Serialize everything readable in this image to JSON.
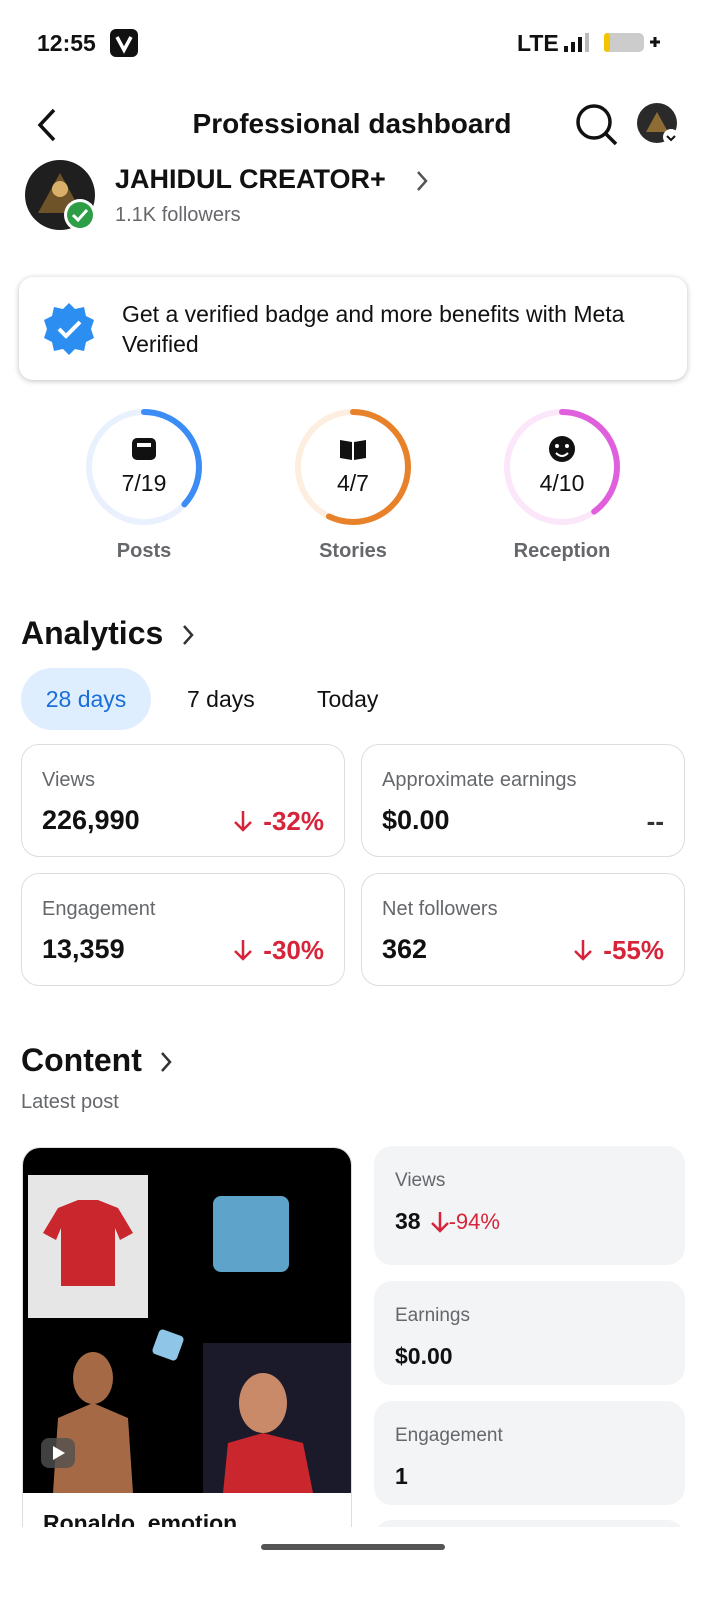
{
  "status_bar": {
    "time": "12:55",
    "network": "LTE"
  },
  "header": {
    "title": "Professional dashboard"
  },
  "profile": {
    "name": "JAHIDUL CREATOR+",
    "followers": "1.1K followers"
  },
  "banner": {
    "text": "Get a verified badge and more benefits with Meta Verified"
  },
  "goals": [
    {
      "value": "7/19",
      "label": "Posts",
      "color": "#3b8cf5",
      "track": "#e8f1fd",
      "icon": "posts"
    },
    {
      "value": "4/7",
      "label": "Stories",
      "color": "#e8822a",
      "track": "#fdeee0",
      "icon": "stories"
    },
    {
      "value": "4/10",
      "label": "Reception",
      "color": "#e05fdc",
      "track": "#fbe6fa",
      "icon": "reception"
    }
  ],
  "analytics": {
    "title": "Analytics",
    "tabs": [
      "28 days",
      "7 days",
      "Today"
    ],
    "active_tab": 0,
    "metrics": [
      {
        "label": "Views",
        "value": "226,990",
        "change": "-32%",
        "trend": "down"
      },
      {
        "label": "Approximate earnings",
        "value": "$0.00",
        "change": "--"
      },
      {
        "label": "Engagement",
        "value": "13,359",
        "change": "-30%",
        "trend": "down"
      },
      {
        "label": "Net followers",
        "value": "362",
        "change": "-55%",
        "trend": "down"
      }
    ]
  },
  "content": {
    "title": "Content",
    "subtitle": "Latest post",
    "post": {
      "title": "Ronaldo, emotion",
      "stats": [
        {
          "label": "Views",
          "value": "38",
          "change": "-94%",
          "trend": "down"
        },
        {
          "label": "Earnings",
          "value": "$0.00"
        },
        {
          "label": "Engagement",
          "value": "1"
        }
      ]
    }
  }
}
